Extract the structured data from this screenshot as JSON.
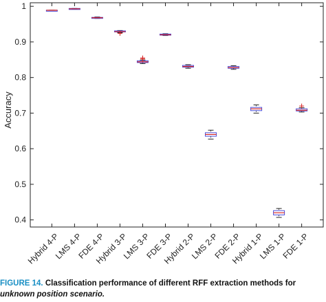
{
  "caption": {
    "label": "FIGURE 14.",
    "text": "Classification performance of different RFF extraction methods for",
    "line2": "unknown position scenario."
  },
  "chart_data": {
    "type": "boxplot",
    "title": "",
    "xlabel": "",
    "ylabel": "Accuracy",
    "ylim": [
      0.38,
      1.01
    ],
    "yticks": [
      0.4,
      0.5,
      0.6,
      0.7,
      0.8,
      0.9,
      1
    ],
    "ytick_labels": [
      "0.4",
      "0.5",
      "0.6",
      "0.7",
      "0.8",
      "0.9",
      "1"
    ],
    "grid": false,
    "box_color": "#4a4ad6",
    "median_color": "#d62020",
    "outlier_color": "#d62020",
    "categories": [
      "Hybrid 4-P",
      "LMS 4-P",
      "FDE 4-P",
      "Hybrid 3-P",
      "LMS 3-P",
      "FDE 3-P",
      "Hybrid 2-P",
      "LMS 2-P",
      "FDE 2-P",
      "Hybrid 1-P",
      "LMS 1-P",
      "FDE 1-P"
    ],
    "boxes": [
      {
        "whisker_low": 0.989,
        "q1": 0.989,
        "median": 0.989,
        "q3": 0.989,
        "whisker_high": 0.989,
        "outliers": []
      },
      {
        "whisker_low": 0.993,
        "q1": 0.993,
        "median": 0.993,
        "q3": 0.994,
        "whisker_high": 0.994,
        "outliers": []
      },
      {
        "whisker_low": 0.966,
        "q1": 0.967,
        "median": 0.968,
        "q3": 0.969,
        "whisker_high": 0.97,
        "outliers": []
      },
      {
        "whisker_low": 0.926,
        "q1": 0.928,
        "median": 0.929,
        "q3": 0.931,
        "whisker_high": 0.932,
        "outliers": [
          0.924
        ]
      },
      {
        "whisker_low": 0.839,
        "q1": 0.842,
        "median": 0.844,
        "q3": 0.847,
        "whisker_high": 0.849,
        "outliers": [
          0.852,
          0.855
        ]
      },
      {
        "whisker_low": 0.918,
        "q1": 0.919,
        "median": 0.92,
        "q3": 0.922,
        "whisker_high": 0.923,
        "outliers": []
      },
      {
        "whisker_low": 0.826,
        "q1": 0.829,
        "median": 0.831,
        "q3": 0.834,
        "whisker_high": 0.836,
        "outliers": []
      },
      {
        "whisker_low": 0.627,
        "q1": 0.635,
        "median": 0.64,
        "q3": 0.645,
        "whisker_high": 0.652,
        "outliers": []
      },
      {
        "whisker_low": 0.823,
        "q1": 0.826,
        "median": 0.828,
        "q3": 0.831,
        "whisker_high": 0.833,
        "outliers": []
      },
      {
        "whisker_low": 0.7,
        "q1": 0.707,
        "median": 0.712,
        "q3": 0.716,
        "whisker_high": 0.723,
        "outliers": []
      },
      {
        "whisker_low": 0.407,
        "q1": 0.414,
        "median": 0.42,
        "q3": 0.426,
        "whisker_high": 0.432,
        "outliers": []
      },
      {
        "whisker_low": 0.703,
        "q1": 0.706,
        "median": 0.708,
        "q3": 0.712,
        "whisker_high": 0.715,
        "outliers": [
          0.72
        ]
      }
    ]
  }
}
